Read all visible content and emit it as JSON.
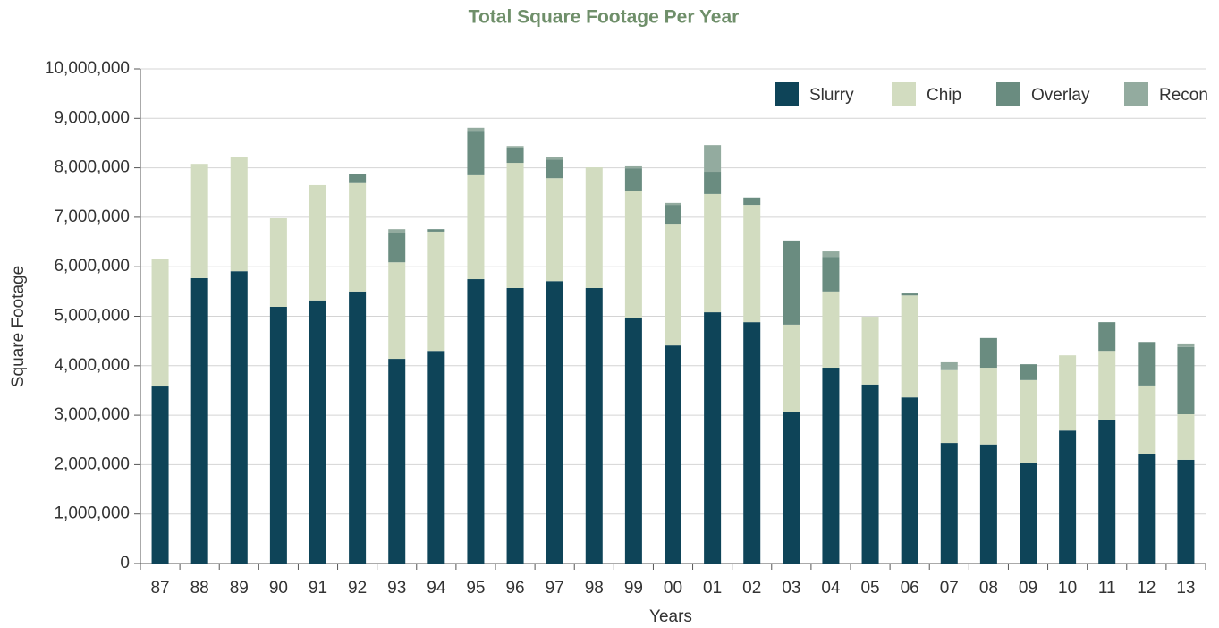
{
  "chart_data": {
    "type": "stacked_bar",
    "title": "Total Square Footage Per Year",
    "x_label": "Years",
    "y_label": "Square Footage",
    "categories": [
      "87",
      "88",
      "89",
      "90",
      "91",
      "92",
      "93",
      "94",
      "95",
      "96",
      "97",
      "98",
      "99",
      "00",
      "01",
      "02",
      "03",
      "04",
      "05",
      "06",
      "07",
      "08",
      "09",
      "10",
      "11",
      "12",
      "13"
    ],
    "series": [
      {
        "name": "Slurry",
        "color": "#0e4458",
        "values": [
          3580000,
          5770000,
          5910000,
          5190000,
          5320000,
          5500000,
          4140000,
          4300000,
          5750000,
          5570000,
          5710000,
          5570000,
          4970000,
          4410000,
          5080000,
          4880000,
          3060000,
          3960000,
          3620000,
          3360000,
          2440000,
          2410000,
          2030000,
          2690000,
          2910000,
          2210000,
          2100000
        ]
      },
      {
        "name": "Chip",
        "color": "#d2dcc0",
        "values": [
          2570000,
          2310000,
          2300000,
          1790000,
          2330000,
          2190000,
          1950000,
          2410000,
          2100000,
          2530000,
          2080000,
          2440000,
          2570000,
          2460000,
          2390000,
          2370000,
          1770000,
          1540000,
          1370000,
          2060000,
          1470000,
          1550000,
          1680000,
          1520000,
          1390000,
          1390000,
          920000
        ]
      },
      {
        "name": "Overlay",
        "color": "#6a8c80",
        "values": [
          0,
          0,
          0,
          0,
          0,
          180000,
          600000,
          50000,
          900000,
          310000,
          380000,
          0,
          450000,
          380000,
          450000,
          150000,
          1700000,
          700000,
          0,
          40000,
          0,
          600000,
          320000,
          0,
          580000,
          880000,
          1360000
        ]
      },
      {
        "name": "Recon",
        "color": "#93ab9f",
        "values": [
          0,
          0,
          0,
          0,
          0,
          0,
          70000,
          0,
          60000,
          30000,
          40000,
          0,
          40000,
          40000,
          540000,
          0,
          0,
          110000,
          0,
          0,
          160000,
          0,
          0,
          0,
          0,
          0,
          70000
        ]
      }
    ],
    "ylim": [
      0,
      10000000
    ],
    "yticks": [
      0,
      {
        "value": 1000000,
        "label": "1,000,000"
      },
      {
        "value": 2000000,
        "label": "2,000,000"
      },
      {
        "value": 3000000,
        "label": "3,000,000"
      },
      {
        "value": 4000000,
        "label": "4,000,000"
      },
      {
        "value": 5000000,
        "label": "5,000,000"
      },
      {
        "value": 6000000,
        "label": "6,000,000"
      },
      {
        "value": 7000000,
        "label": "7,000,000"
      },
      {
        "value": 8000000,
        "label": "8,000,000"
      },
      {
        "value": 9000000,
        "label": "9,000,000"
      },
      {
        "value": 10000000,
        "label": "10,000,000"
      }
    ],
    "grid": true,
    "legend": "top-right"
  }
}
